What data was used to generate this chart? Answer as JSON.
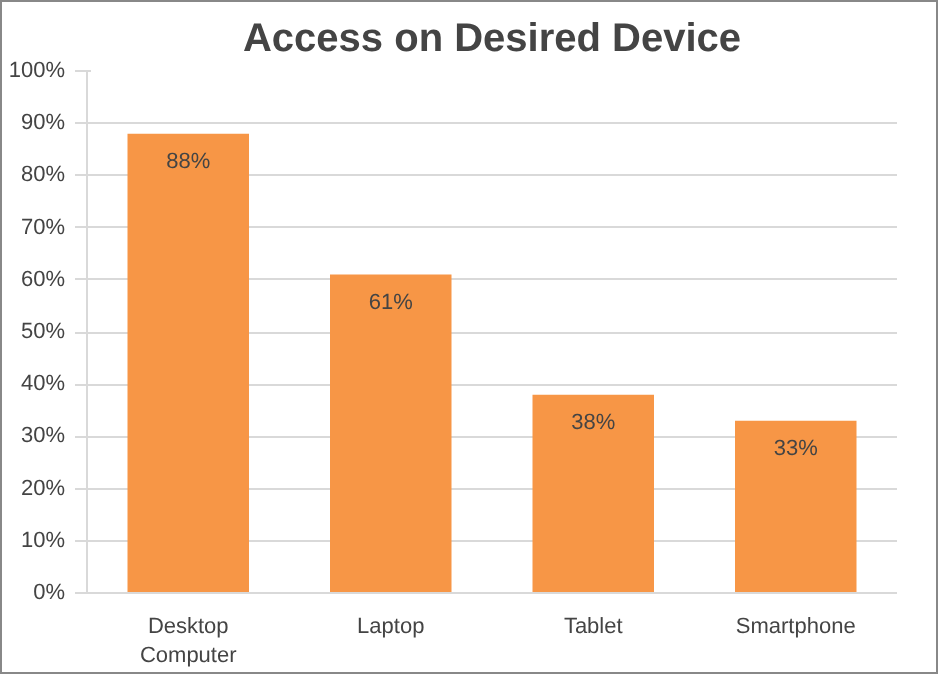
{
  "chart_data": {
    "type": "bar",
    "title": "Access on Desired Device",
    "categories": [
      "Desktop Computer",
      "Laptop",
      "Tablet",
      "Smartphone"
    ],
    "values": [
      88,
      61,
      38,
      33
    ],
    "color": "#f79646",
    "value_labels": [
      "88%",
      "61%",
      "38%",
      "33%"
    ],
    "ylim": [
      0,
      100
    ],
    "yticks": [
      {
        "value": 0,
        "label": "0%"
      },
      {
        "value": 10,
        "label": "10%"
      },
      {
        "value": 20,
        "label": "20%"
      },
      {
        "value": 30,
        "label": "30%"
      },
      {
        "value": 40,
        "label": "40%"
      },
      {
        "value": 50,
        "label": "50%"
      },
      {
        "value": 60,
        "label": "60%"
      },
      {
        "value": 70,
        "label": "70%"
      },
      {
        "value": 80,
        "label": "80%"
      },
      {
        "value": 90,
        "label": "90%"
      },
      {
        "value": 100,
        "label": "100%"
      }
    ],
    "grid": "y"
  }
}
